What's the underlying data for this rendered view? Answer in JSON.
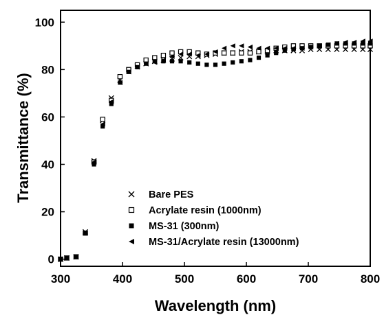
{
  "chart_data": {
    "type": "scatter",
    "title": "",
    "xlabel": "Wavelength (nm)",
    "ylabel": "Transmittance (%)",
    "xlim": [
      300,
      800
    ],
    "ylim": [
      -3,
      105
    ],
    "xticks": [
      300,
      400,
      500,
      600,
      700,
      800
    ],
    "yticks": [
      0,
      20,
      40,
      60,
      80,
      100
    ],
    "grid": false,
    "legend_position": "bottom-right",
    "series": [
      {
        "name": "Bare PES",
        "marker": "x",
        "x": [
          300,
          310,
          325,
          340,
          354,
          368,
          382,
          396,
          410,
          424,
          438,
          452,
          466,
          480,
          494,
          508,
          522,
          536,
          550,
          564,
          578,
          592,
          606,
          620,
          634,
          648,
          662,
          676,
          690,
          704,
          718,
          732,
          746,
          760,
          774,
          788,
          800
        ],
        "y": [
          0,
          0.5,
          1,
          11.5,
          41.5,
          58.5,
          68,
          75.5,
          79.5,
          81.5,
          82.5,
          83.5,
          84,
          84.5,
          85,
          85.5,
          85.5,
          86,
          86.5,
          87,
          87,
          87.5,
          87.5,
          87.5,
          87.5,
          88,
          88,
          88,
          88,
          88.5,
          88.5,
          88.5,
          88.5,
          88.5,
          88.5,
          88.5,
          88.5
        ]
      },
      {
        "name": "Acrylate resin (1000nm)",
        "marker": "square-open",
        "x": [
          300,
          310,
          325,
          340,
          354,
          368,
          382,
          396,
          410,
          424,
          438,
          452,
          466,
          480,
          494,
          508,
          522,
          536,
          550,
          564,
          578,
          592,
          606,
          620,
          634,
          648,
          662,
          676,
          690,
          704,
          718,
          732,
          746,
          760,
          774,
          788,
          800
        ],
        "y": [
          0,
          0.5,
          1,
          11,
          41,
          59,
          67,
          77,
          80,
          82,
          84,
          85,
          86,
          87,
          87.5,
          87.5,
          87,
          86.5,
          87,
          87,
          87,
          87,
          87,
          87.5,
          88,
          89,
          89.5,
          90,
          90,
          90,
          90,
          90,
          90,
          90,
          90,
          90,
          90
        ]
      },
      {
        "name": "MS-31 (300nm)",
        "marker": "square-filled",
        "x": [
          300,
          310,
          325,
          340,
          354,
          368,
          382,
          396,
          410,
          424,
          438,
          452,
          466,
          480,
          494,
          508,
          522,
          536,
          550,
          564,
          578,
          592,
          606,
          620,
          634,
          648,
          662,
          676,
          690,
          704,
          718,
          732,
          746,
          760,
          774,
          788,
          800
        ],
        "y": [
          0,
          0.5,
          1,
          11,
          40,
          56,
          65.5,
          74.5,
          79,
          81,
          82.5,
          83.5,
          83.5,
          83.5,
          83.5,
          83,
          82.5,
          82,
          82,
          82.5,
          83,
          83.5,
          84,
          85,
          86,
          87,
          88,
          88.5,
          89,
          89.5,
          90,
          90.5,
          91,
          91,
          91,
          91,
          91
        ]
      },
      {
        "name": "MS-31/Acrylate resin (13000nm)",
        "marker": "triangle-left",
        "x": [
          300,
          310,
          325,
          340,
          354,
          368,
          382,
          396,
          410,
          424,
          438,
          452,
          466,
          480,
          494,
          508,
          522,
          536,
          550,
          564,
          578,
          592,
          606,
          620,
          634,
          648,
          662,
          676,
          690,
          704,
          718,
          732,
          746,
          760,
          774,
          788,
          800
        ],
        "y": [
          0,
          0.5,
          1,
          11,
          41,
          57,
          66.5,
          74.5,
          79,
          81,
          82.5,
          83,
          84,
          85.5,
          86.5,
          86.5,
          86,
          86.5,
          87.5,
          89,
          90,
          90,
          89.5,
          89,
          89,
          89,
          89,
          89,
          89,
          89.5,
          90,
          90.5,
          91,
          91.5,
          91.5,
          92,
          92
        ]
      }
    ]
  }
}
